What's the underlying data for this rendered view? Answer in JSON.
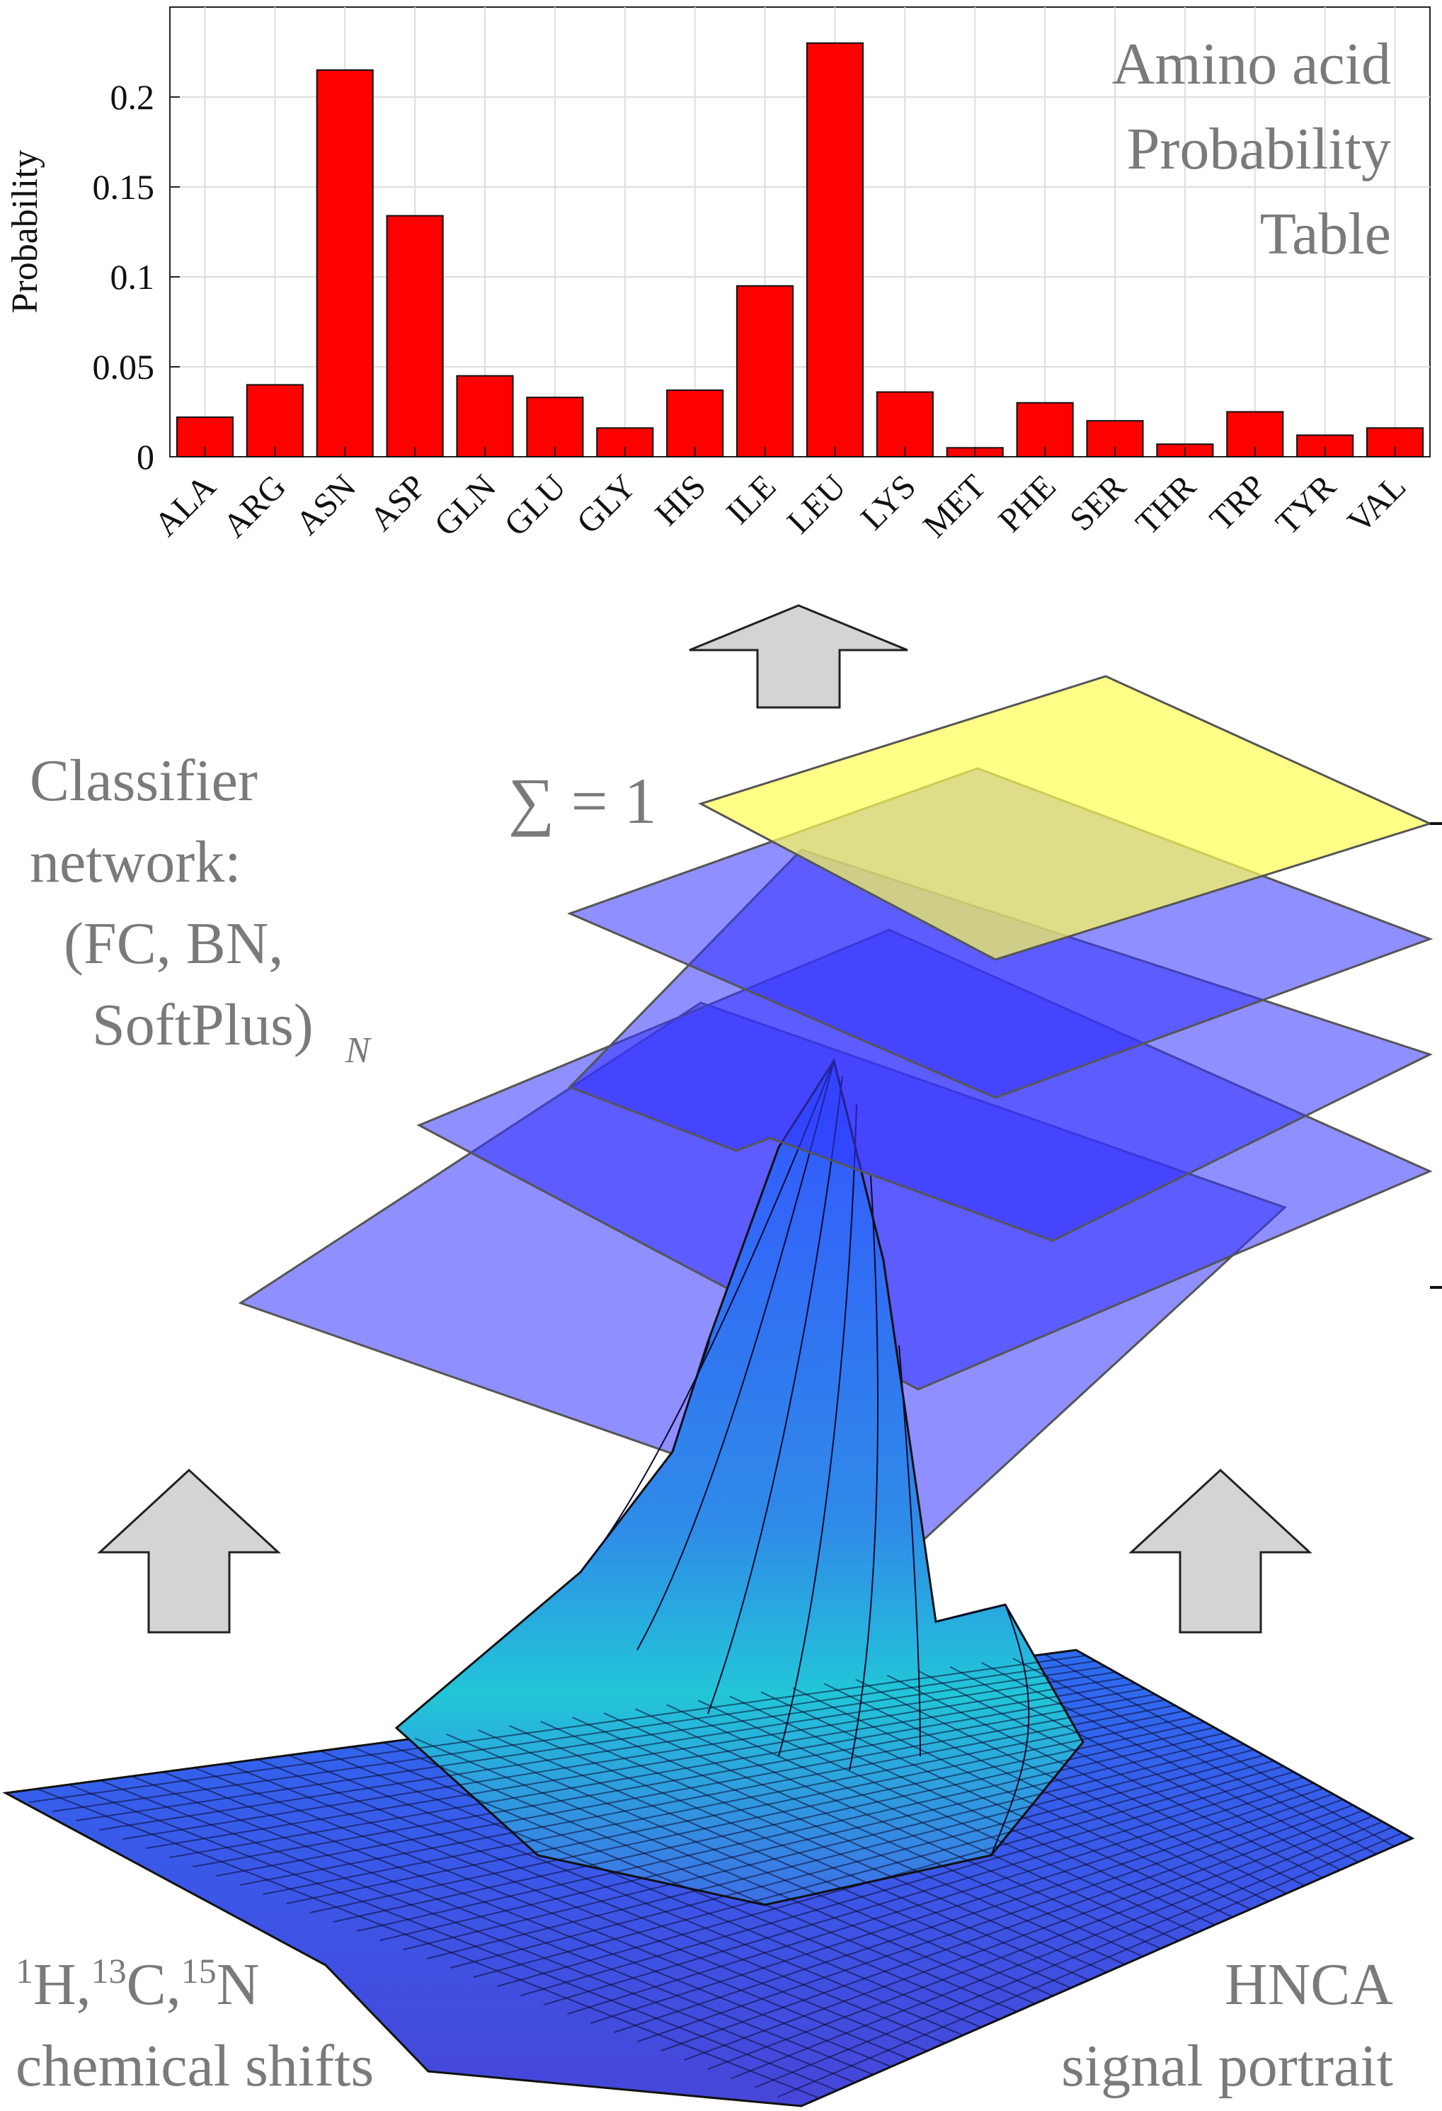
{
  "colors": {
    "bar": "#ff0000",
    "layer": "#3333ff",
    "top_layer": "#ffff66",
    "arrow": "#d3d4d5",
    "label_gray": "#7a7a7a",
    "surface_low": "#4a4ae0",
    "surface_high": "#22c8e0"
  },
  "chart_data": {
    "type": "bar",
    "ylabel": "Probability",
    "ylim": [
      0,
      0.25
    ],
    "yticks": [
      0,
      0.05,
      0.1,
      0.15,
      0.2
    ],
    "ytick_labels": [
      "0",
      "0.05",
      "0.1",
      "0.15",
      "0.2"
    ],
    "grid": true,
    "categories": [
      "ALA",
      "ARG",
      "ASN",
      "ASP",
      "GLN",
      "GLU",
      "GLY",
      "HIS",
      "ILE",
      "LEU",
      "LYS",
      "MET",
      "PHE",
      "SER",
      "THR",
      "TRP",
      "TYR",
      "VAL"
    ],
    "values": [
      0.022,
      0.04,
      0.215,
      0.134,
      0.045,
      0.033,
      0.016,
      0.037,
      0.095,
      0.23,
      0.036,
      0.005,
      0.03,
      0.02,
      0.007,
      0.025,
      0.012,
      0.016
    ],
    "title_lines": [
      "Amino acid",
      "Probability",
      "Table"
    ]
  },
  "labels": {
    "classifier_lines": [
      "Classifier",
      "network:",
      "(FC, BN,",
      "SoftPlus)"
    ],
    "classifier_subscript": "N",
    "sum": "∑ = 1",
    "input_sup1": "1",
    "input_h": "H,",
    "input_sup2": "13",
    "input_c": "C,",
    "input_sup3": "15",
    "input_n": "N",
    "input_line2": "chemical shifts",
    "output_line1": "HNCA",
    "output_line2": "signal portrait"
  }
}
